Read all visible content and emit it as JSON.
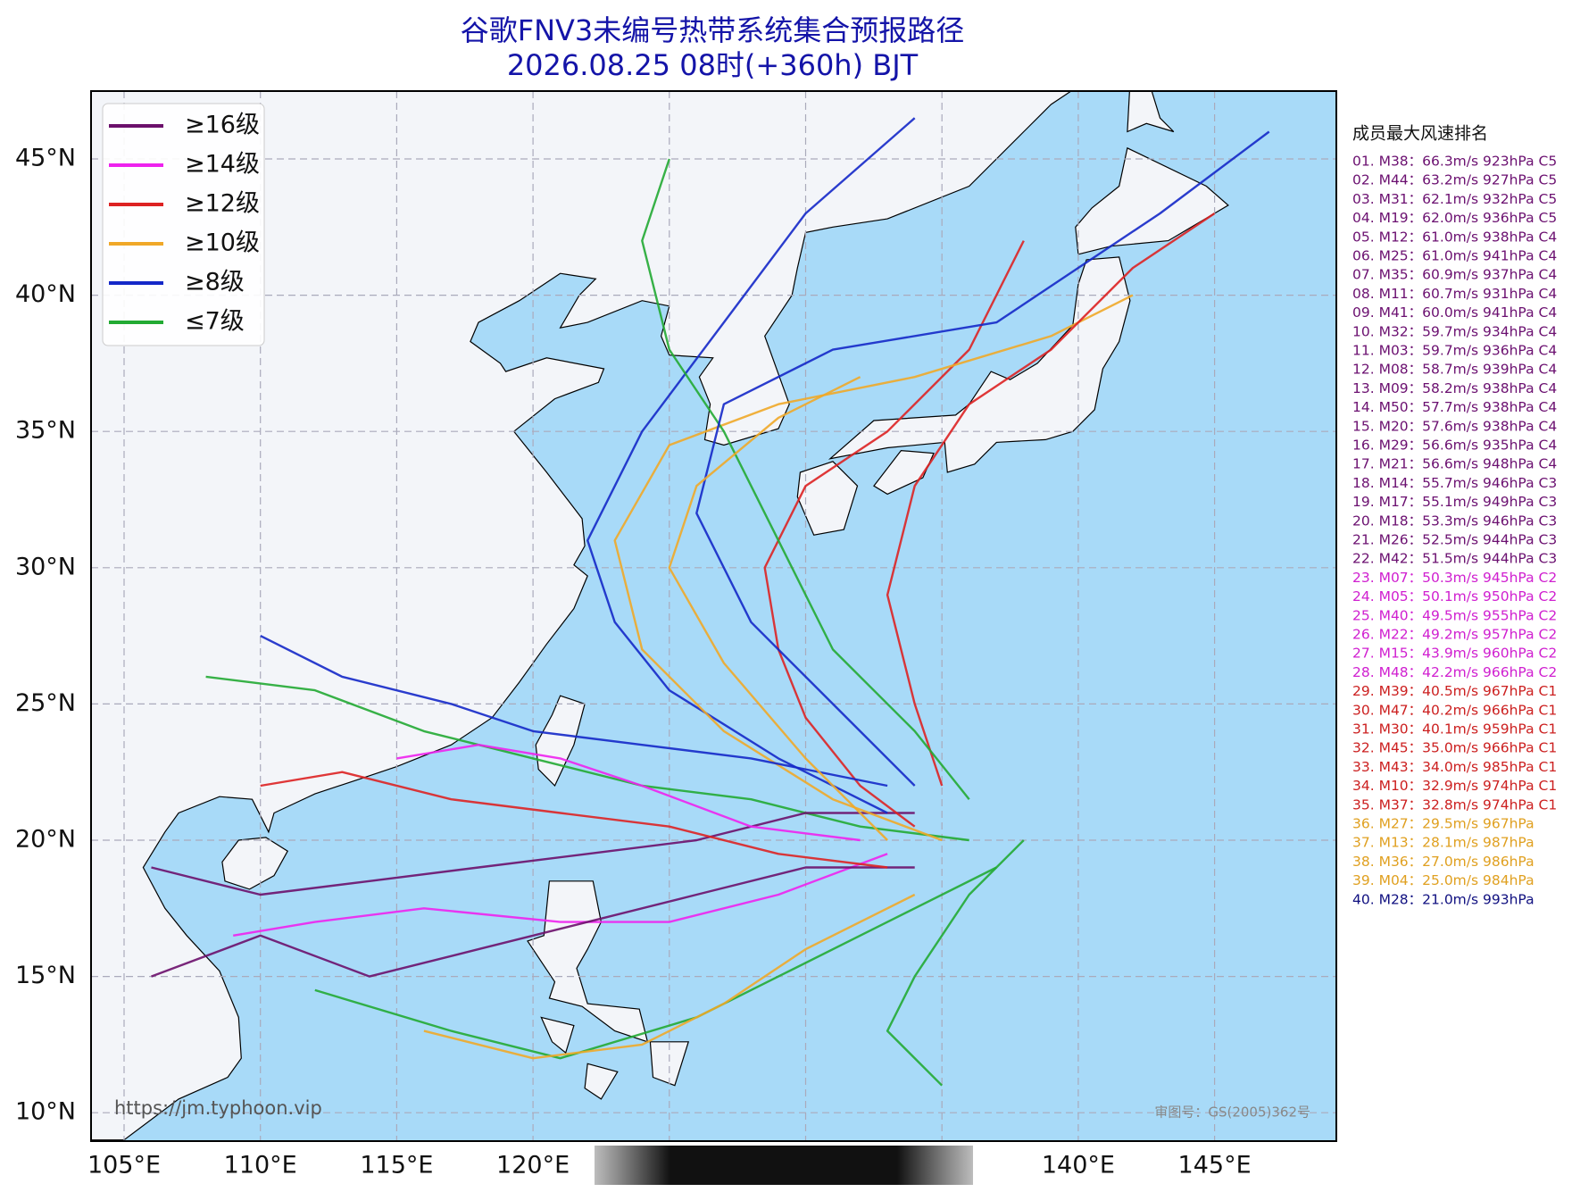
{
  "title": "谷歌FNV3未编号热带系统集合预报路径",
  "subtitle": "2026.08.25 08时(+360h) BJT",
  "legend": [
    {
      "label": "≥16级",
      "color": "#6b0f6b"
    },
    {
      "label": "≥14级",
      "color": "#ee22ee"
    },
    {
      "label": "≥12级",
      "color": "#dd2222"
    },
    {
      "label": "≥10级",
      "color": "#f0a828"
    },
    {
      "label": "≥8级",
      "color": "#1428c8"
    },
    {
      "label": "≤7级",
      "color": "#22aa33"
    }
  ],
  "grid": {
    "lat": [
      {
        "value": 45,
        "label": "45°N"
      },
      {
        "value": 40,
        "label": "40°N"
      },
      {
        "value": 35,
        "label": "35°N"
      },
      {
        "value": 30,
        "label": "30°N"
      },
      {
        "value": 25,
        "label": "25°N"
      },
      {
        "value": 20,
        "label": "20°N"
      },
      {
        "value": 15,
        "label": "15°N"
      },
      {
        "value": 10,
        "label": "10°N"
      }
    ],
    "lon": [
      {
        "value": 105,
        "label": "105°E"
      },
      {
        "value": 110,
        "label": "110°E"
      },
      {
        "value": 115,
        "label": "115°E"
      },
      {
        "value": 120,
        "label": "120°E"
      },
      {
        "value": 125,
        "label": null
      },
      {
        "value": 130,
        "label": null
      },
      {
        "value": 135,
        "label": null
      },
      {
        "value": 140,
        "label": "140°E"
      },
      {
        "value": 145,
        "label": "145°E"
      }
    ]
  },
  "ranking": {
    "title": "成员最大风速排名",
    "groups": [
      {
        "color": "#6b1070",
        "items": [
          "01. M38：66.3m/s 923hPa C5",
          "02. M44：63.2m/s 927hPa C5",
          "03. M31：62.1m/s 932hPa C5",
          "04. M19：62.0m/s 936hPa C5",
          "05. M12：61.0m/s 938hPa C4",
          "06. M25：61.0m/s 941hPa C4",
          "07. M35：60.9m/s 937hPa C4",
          "08. M11：60.7m/s 931hPa C4",
          "09. M41：60.0m/s 941hPa C4",
          "10. M32：59.7m/s 934hPa C4",
          "11. M03：59.7m/s 936hPa C4",
          "12. M08：58.7m/s 939hPa C4",
          "13. M09：58.2m/s 938hPa C4",
          "14. M50：57.7m/s 938hPa C4",
          "15. M20：57.6m/s 938hPa C4",
          "16. M29：56.6m/s 935hPa C4",
          "17. M21：56.6m/s 948hPa C4",
          "18. M14：55.7m/s 946hPa C3",
          "19. M17：55.1m/s 949hPa C3",
          "20. M18：53.3m/s 946hPa C3",
          "21. M26：52.5m/s 944hPa C3",
          "22. M42：51.5m/s 944hPa C3"
        ]
      },
      {
        "color": "#d020d0",
        "items": [
          "23. M07：50.3m/s 945hPa C2",
          "24. M05：50.1m/s 950hPa C2",
          "25. M40：49.5m/s 955hPa C2",
          "26. M22：49.2m/s 957hPa C2",
          "27. M15：43.9m/s 960hPa C2",
          "28. M48：42.2m/s 966hPa C2"
        ]
      },
      {
        "color": "#cc2020",
        "items": [
          "29. M39：40.5m/s 967hPa C1",
          "30. M47：40.2m/s 966hPa C1",
          "31. M30：40.1m/s 959hPa C1",
          "32. M45：35.0m/s 966hPa C1",
          "33. M43：34.0m/s 985hPa C1",
          "34. M10：32.9m/s 974hPa C1",
          "35. M37：32.8m/s 974hPa C1"
        ]
      },
      {
        "color": "#e0a020",
        "items": [
          "36. M27：29.5m/s 967hPa",
          "37. M13：28.1m/s 987hPa",
          "38. M36：27.0m/s 986hPa",
          "39. M04：25.0m/s 984hPa"
        ]
      },
      {
        "color": "#101080",
        "items": [
          "40. M28：21.0m/s 993hPa"
        ]
      }
    ]
  },
  "watermark": "https://jm.typhoon.vip",
  "approval": "审图号：GS(2005)362号"
}
